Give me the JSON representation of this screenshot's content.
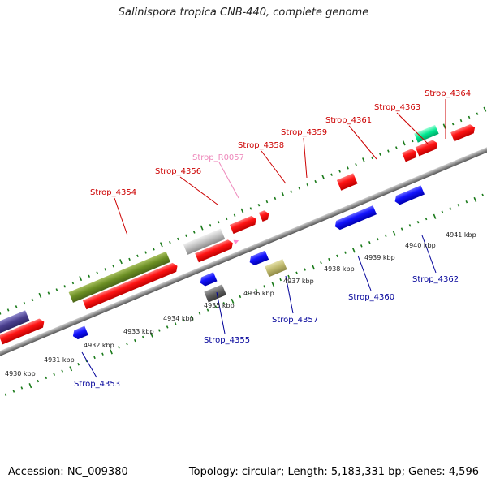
{
  "title": "Salinispora tropica CNB-440, complete genome",
  "footer": {
    "accession": "Accession: NC_009380",
    "summary": "Topology: circular; Length: 5,183,331 bp; Genes: 4,596"
  },
  "colors": {
    "forward_label": "#cc0000",
    "reverse_label": "#000099",
    "rna_label": "#ee88bb",
    "backbone": "#888888",
    "tick": "#1a7a1a"
  },
  "kbp_labels": [
    "4930 kbp",
    "4931 kbp",
    "4932 kbp",
    "4933 kbp",
    "4934 kbp",
    "4935 kbp",
    "4936 kbp",
    "4937 kbp",
    "4938 kbp",
    "4939 kbp",
    "4940 kbp",
    "4941 kbp"
  ],
  "top_labels": [
    "Strop_4354",
    "Strop_4356",
    "Strop_R0057",
    "Strop_4358",
    "Strop_4359",
    "Strop_4361",
    "Strop_4363",
    "Strop_4364"
  ],
  "bottom_labels": [
    "Strop_4353",
    "Strop_4355",
    "Strop_4357",
    "Strop_4360",
    "Strop_4362"
  ]
}
